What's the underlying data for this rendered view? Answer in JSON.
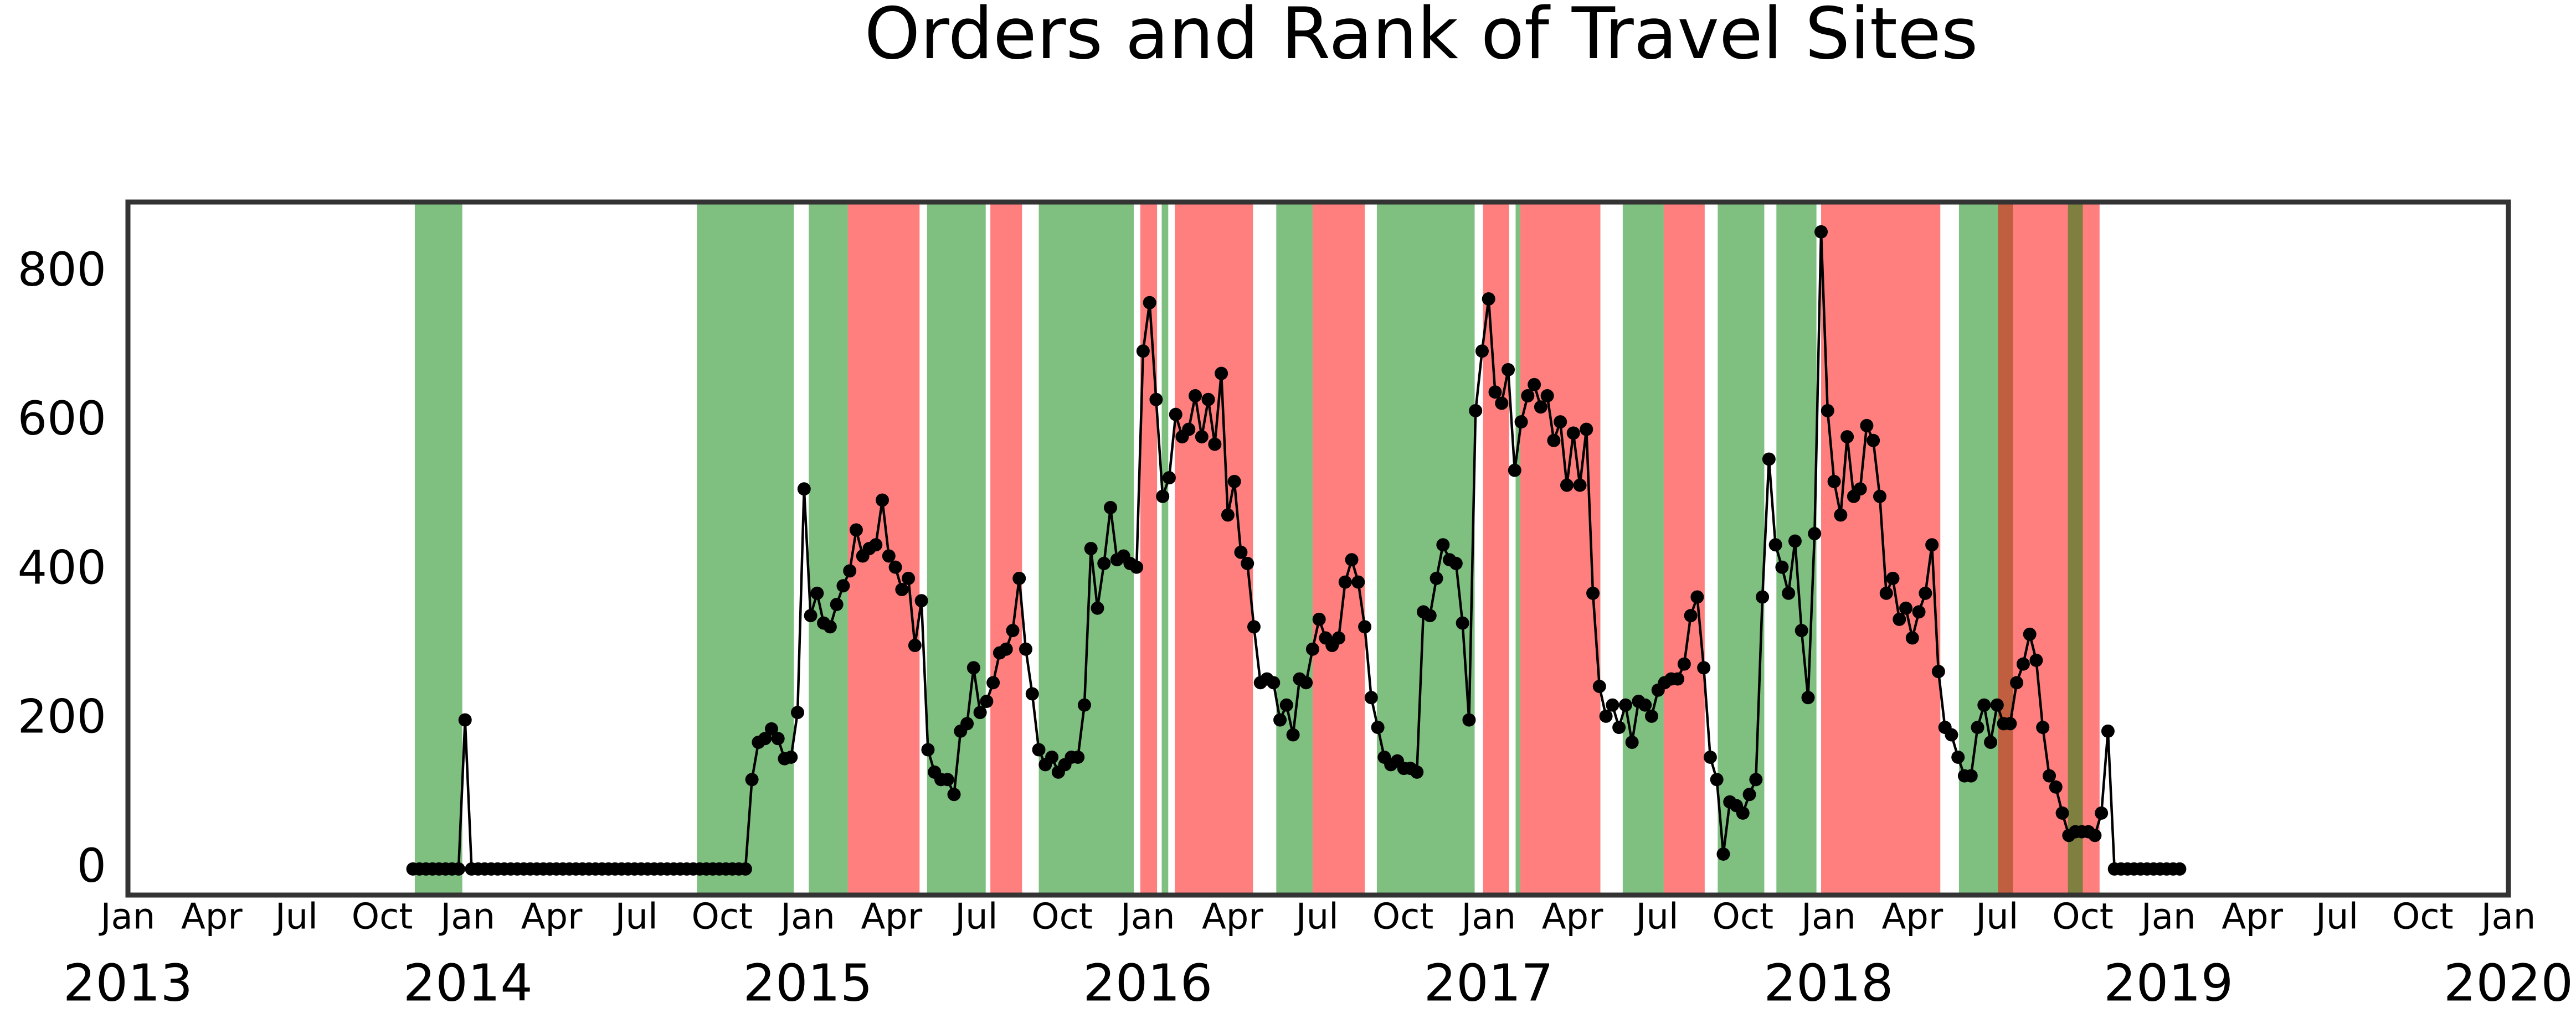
{
  "chart_data": {
    "type": "line",
    "title": "Orders and Rank of Travel Sites",
    "color": "#000000",
    "span_alpha": 0.5,
    "xlim": [
      "2013-01-01",
      "2020-01-01"
    ],
    "ylim": [
      -35,
      895
    ],
    "yticks": [
      0,
      200,
      400,
      600,
      800
    ],
    "xticks": [
      {
        "value": "2013-01-01",
        "label": "Jan"
      },
      {
        "value": "2013-04-01",
        "label": "Apr"
      },
      {
        "value": "2013-07-01",
        "label": "Jul"
      },
      {
        "value": "2013-10-01",
        "label": "Oct"
      },
      {
        "value": "2014-01-01",
        "label": "Jan"
      },
      {
        "value": "2014-04-01",
        "label": "Apr"
      },
      {
        "value": "2014-07-01",
        "label": "Jul"
      },
      {
        "value": "2014-10-01",
        "label": "Oct"
      },
      {
        "value": "2015-01-01",
        "label": "Jan"
      },
      {
        "value": "2015-04-01",
        "label": "Apr"
      },
      {
        "value": "2015-07-01",
        "label": "Jul"
      },
      {
        "value": "2015-10-01",
        "label": "Oct"
      },
      {
        "value": "2016-01-01",
        "label": "Jan"
      },
      {
        "value": "2016-04-01",
        "label": "Apr"
      },
      {
        "value": "2016-07-01",
        "label": "Jul"
      },
      {
        "value": "2016-10-01",
        "label": "Oct"
      },
      {
        "value": "2017-01-01",
        "label": "Jan"
      },
      {
        "value": "2017-04-01",
        "label": "Apr"
      },
      {
        "value": "2017-07-01",
        "label": "Jul"
      },
      {
        "value": "2017-10-01",
        "label": "Oct"
      },
      {
        "value": "2018-01-01",
        "label": "Jan"
      },
      {
        "value": "2018-04-01",
        "label": "Apr"
      },
      {
        "value": "2018-07-01",
        "label": "Jul"
      },
      {
        "value": "2018-10-01",
        "label": "Oct"
      },
      {
        "value": "2019-01-01",
        "label": "Jan"
      },
      {
        "value": "2019-04-01",
        "label": "Apr"
      },
      {
        "value": "2019-07-01",
        "label": "Jul"
      },
      {
        "value": "2019-10-01",
        "label": "Oct"
      },
      {
        "value": "2020-01-01",
        "label": "Jan"
      }
    ],
    "year_ticks": [
      {
        "value": "2013-01-01",
        "label": "2013"
      },
      {
        "value": "2014-01-01",
        "label": "2014"
      },
      {
        "value": "2015-01-01",
        "label": "2015"
      },
      {
        "value": "2016-01-01",
        "label": "2016"
      },
      {
        "value": "2017-01-01",
        "label": "2017"
      },
      {
        "value": "2018-01-01",
        "label": "2018"
      },
      {
        "value": "2019-01-01",
        "label": "2019"
      },
      {
        "value": "2020-01-01",
        "label": "2020"
      }
    ],
    "spans": [
      {
        "start": "2013-11-05",
        "end": "2013-12-26",
        "color": "#008000"
      },
      {
        "start": "2014-09-04",
        "end": "2014-12-17",
        "color": "#008000"
      },
      {
        "start": "2015-01-02",
        "end": "2015-02-13",
        "color": "#008000"
      },
      {
        "start": "2015-02-13",
        "end": "2015-05-01",
        "color": "#ff0000"
      },
      {
        "start": "2015-05-09",
        "end": "2015-07-11",
        "color": "#008000"
      },
      {
        "start": "2015-07-16",
        "end": "2015-08-19",
        "color": "#ff0000"
      },
      {
        "start": "2015-09-06",
        "end": "2015-12-17",
        "color": "#008000"
      },
      {
        "start": "2015-12-24",
        "end": "2016-01-11",
        "color": "#ff0000"
      },
      {
        "start": "2016-01-16",
        "end": "2016-01-23",
        "color": "#008000"
      },
      {
        "start": "2016-01-30",
        "end": "2016-04-23",
        "color": "#ff0000"
      },
      {
        "start": "2016-05-18",
        "end": "2016-06-26",
        "color": "#008000"
      },
      {
        "start": "2016-06-26",
        "end": "2016-08-21",
        "color": "#ff0000"
      },
      {
        "start": "2016-09-03",
        "end": "2016-12-17",
        "color": "#008000"
      },
      {
        "start": "2016-12-26",
        "end": "2017-01-23",
        "color": "#ff0000"
      },
      {
        "start": "2017-01-30",
        "end": "2017-02-04",
        "color": "#008000"
      },
      {
        "start": "2017-02-04",
        "end": "2017-05-01",
        "color": "#ff0000"
      },
      {
        "start": "2017-05-25",
        "end": "2017-07-08",
        "color": "#008000"
      },
      {
        "start": "2017-07-08",
        "end": "2017-08-21",
        "color": "#ff0000"
      },
      {
        "start": "2017-09-04",
        "end": "2017-10-24",
        "color": "#008000"
      },
      {
        "start": "2017-11-06",
        "end": "2017-12-19",
        "color": "#008000"
      },
      {
        "start": "2017-12-24",
        "end": "2018-05-01",
        "color": "#ff0000"
      },
      {
        "start": "2018-05-21",
        "end": "2018-07-18",
        "color": "#008000"
      },
      {
        "start": "2018-07-02",
        "end": "2018-10-19",
        "color": "#ff0000"
      },
      {
        "start": "2018-09-15",
        "end": "2018-10-01",
        "color": "#008000"
      }
    ],
    "x": [
      "2013-11-03",
      "2013-11-10",
      "2013-11-17",
      "2013-11-24",
      "2013-12-01",
      "2013-12-08",
      "2013-12-15",
      "2013-12-22",
      "2013-12-29",
      "2014-01-05",
      "2014-01-12",
      "2014-01-19",
      "2014-01-26",
      "2014-02-02",
      "2014-02-09",
      "2014-02-16",
      "2014-02-23",
      "2014-03-02",
      "2014-03-09",
      "2014-03-16",
      "2014-03-23",
      "2014-03-30",
      "2014-04-06",
      "2014-04-13",
      "2014-04-20",
      "2014-04-27",
      "2014-05-04",
      "2014-05-11",
      "2014-05-18",
      "2014-05-25",
      "2014-06-01",
      "2014-06-08",
      "2014-06-15",
      "2014-06-22",
      "2014-06-29",
      "2014-07-06",
      "2014-07-13",
      "2014-07-20",
      "2014-07-27",
      "2014-08-03",
      "2014-08-10",
      "2014-08-17",
      "2014-08-24",
      "2014-08-31",
      "2014-09-07",
      "2014-09-14",
      "2014-09-21",
      "2014-09-28",
      "2014-10-05",
      "2014-10-12",
      "2014-10-19",
      "2014-10-26",
      "2014-11-02",
      "2014-11-09",
      "2014-11-16",
      "2014-11-23",
      "2014-11-30",
      "2014-12-07",
      "2014-12-14",
      "2014-12-21",
      "2014-12-28",
      "2015-01-04",
      "2015-01-11",
      "2015-01-18",
      "2015-01-25",
      "2015-02-01",
      "2015-02-08",
      "2015-02-15",
      "2015-02-22",
      "2015-03-01",
      "2015-03-08",
      "2015-03-15",
      "2015-03-22",
      "2015-03-29",
      "2015-04-05",
      "2015-04-12",
      "2015-04-19",
      "2015-04-26",
      "2015-05-03",
      "2015-05-10",
      "2015-05-17",
      "2015-05-24",
      "2015-05-31",
      "2015-06-07",
      "2015-06-14",
      "2015-06-21",
      "2015-06-28",
      "2015-07-05",
      "2015-07-12",
      "2015-07-19",
      "2015-07-26",
      "2015-08-02",
      "2015-08-09",
      "2015-08-16",
      "2015-08-23",
      "2015-08-30",
      "2015-09-06",
      "2015-09-13",
      "2015-09-20",
      "2015-09-27",
      "2015-10-04",
      "2015-10-11",
      "2015-10-18",
      "2015-10-25",
      "2015-11-01",
      "2015-11-08",
      "2015-11-15",
      "2015-11-22",
      "2015-11-29",
      "2015-12-06",
      "2015-12-13",
      "2015-12-20",
      "2015-12-27",
      "2016-01-03",
      "2016-01-10",
      "2016-01-17",
      "2016-01-24",
      "2016-01-31",
      "2016-02-07",
      "2016-02-14",
      "2016-02-21",
      "2016-02-28",
      "2016-03-06",
      "2016-03-13",
      "2016-03-20",
      "2016-03-27",
      "2016-04-03",
      "2016-04-10",
      "2016-04-17",
      "2016-04-24",
      "2016-05-01",
      "2016-05-08",
      "2016-05-15",
      "2016-05-22",
      "2016-05-29",
      "2016-06-05",
      "2016-06-12",
      "2016-06-19",
      "2016-06-26",
      "2016-07-03",
      "2016-07-10",
      "2016-07-17",
      "2016-07-24",
      "2016-07-31",
      "2016-08-07",
      "2016-08-14",
      "2016-08-21",
      "2016-08-28",
      "2016-09-04",
      "2016-09-11",
      "2016-09-18",
      "2016-09-25",
      "2016-10-02",
      "2016-10-09",
      "2016-10-16",
      "2016-10-23",
      "2016-10-30",
      "2016-11-06",
      "2016-11-13",
      "2016-11-20",
      "2016-11-27",
      "2016-12-04",
      "2016-12-11",
      "2016-12-18",
      "2016-12-25",
      "2017-01-01",
      "2017-01-08",
      "2017-01-15",
      "2017-01-22",
      "2017-01-29",
      "2017-02-05",
      "2017-02-12",
      "2017-02-19",
      "2017-02-26",
      "2017-03-05",
      "2017-03-12",
      "2017-03-19",
      "2017-03-26",
      "2017-04-02",
      "2017-04-09",
      "2017-04-16",
      "2017-04-23",
      "2017-04-30",
      "2017-05-07",
      "2017-05-14",
      "2017-05-21",
      "2017-05-28",
      "2017-06-04",
      "2017-06-11",
      "2017-06-18",
      "2017-06-25",
      "2017-07-02",
      "2017-07-09",
      "2017-07-16",
      "2017-07-23",
      "2017-07-30",
      "2017-08-06",
      "2017-08-13",
      "2017-08-20",
      "2017-08-27",
      "2017-09-03",
      "2017-09-10",
      "2017-09-17",
      "2017-09-24",
      "2017-10-01",
      "2017-10-08",
      "2017-10-15",
      "2017-10-22",
      "2017-10-29",
      "2017-11-05",
      "2017-11-12",
      "2017-11-19",
      "2017-11-26",
      "2017-12-03",
      "2017-12-10",
      "2017-12-17",
      "2017-12-24",
      "2017-12-31",
      "2018-01-07",
      "2018-01-14",
      "2018-01-21",
      "2018-01-28",
      "2018-02-04",
      "2018-02-11",
      "2018-02-18",
      "2018-02-25",
      "2018-03-04",
      "2018-03-11",
      "2018-03-18",
      "2018-03-25",
      "2018-04-01",
      "2018-04-08",
      "2018-04-15",
      "2018-04-22",
      "2018-04-29",
      "2018-05-06",
      "2018-05-13",
      "2018-05-20",
      "2018-05-27",
      "2018-06-03",
      "2018-06-10",
      "2018-06-17",
      "2018-06-24",
      "2018-07-01",
      "2018-07-08",
      "2018-07-15",
      "2018-07-22",
      "2018-07-29",
      "2018-08-05",
      "2018-08-12",
      "2018-08-19",
      "2018-08-26",
      "2018-09-02",
      "2018-09-09",
      "2018-09-16",
      "2018-09-23",
      "2018-09-30",
      "2018-10-07",
      "2018-10-14",
      "2018-10-21",
      "2018-10-28",
      "2018-11-04",
      "2018-11-11",
      "2018-11-18",
      "2018-11-25",
      "2018-12-02",
      "2018-12-09",
      "2018-12-16",
      "2018-12-23",
      "2018-12-30",
      "2019-01-06",
      "2019-01-13"
    ],
    "values": [
      0,
      0,
      0,
      0,
      0,
      0,
      0,
      0,
      200,
      0,
      0,
      0,
      0,
      0,
      0,
      0,
      0,
      0,
      0,
      0,
      0,
      0,
      0,
      0,
      0,
      0,
      0,
      0,
      0,
      0,
      0,
      0,
      0,
      0,
      0,
      0,
      0,
      0,
      0,
      0,
      0,
      0,
      0,
      0,
      0,
      0,
      0,
      0,
      0,
      0,
      0,
      0,
      120,
      170,
      175,
      188,
      175,
      148,
      150,
      210,
      510,
      340,
      370,
      330,
      325,
      355,
      380,
      400,
      455,
      420,
      430,
      435,
      495,
      420,
      405,
      375,
      390,
      300,
      360,
      160,
      130,
      120,
      120,
      100,
      185,
      195,
      270,
      210,
      225,
      250,
      290,
      295,
      320,
      390,
      295,
      235,
      160,
      140,
      150,
      130,
      140,
      150,
      150,
      220,
      430,
      350,
      410,
      485,
      415,
      420,
      410,
      405,
      695,
      760,
      630,
      500,
      525,
      610,
      580,
      590,
      635,
      580,
      630,
      570,
      665,
      475,
      520,
      425,
      410,
      325,
      250,
      255,
      250,
      200,
      220,
      180,
      255,
      250,
      295,
      335,
      310,
      300,
      310,
      385,
      415,
      385,
      325,
      230,
      190,
      150,
      140,
      145,
      135,
      135,
      130,
      345,
      340,
      390,
      435,
      415,
      410,
      330,
      200,
      615,
      695,
      765,
      640,
      625,
      670,
      535,
      600,
      635,
      650,
      620,
      635,
      575,
      600,
      515,
      585,
      515,
      590,
      370,
      245,
      205,
      220,
      190,
      220,
      170,
      225,
      220,
      205,
      240,
      250,
      255,
      255,
      275,
      340,
      365,
      270,
      150,
      120,
      20,
      90,
      85,
      75,
      100,
      120,
      365,
      550,
      435,
      405,
      370,
      440,
      320,
      230,
      450,
      855,
      615,
      520,
      475,
      580,
      500,
      510,
      595,
      575,
      500,
      370,
      390,
      335,
      350,
      310,
      345,
      370,
      435,
      265,
      190,
      180,
      150,
      125,
      125,
      190,
      220,
      170,
      220,
      195,
      195,
      250,
      275,
      315,
      280,
      190,
      125,
      110,
      75,
      45,
      50,
      50,
      50,
      45,
      75,
      185,
      0,
      0,
      0,
      0,
      0,
      0,
      0,
      0,
      0,
      0,
      0
    ]
  }
}
